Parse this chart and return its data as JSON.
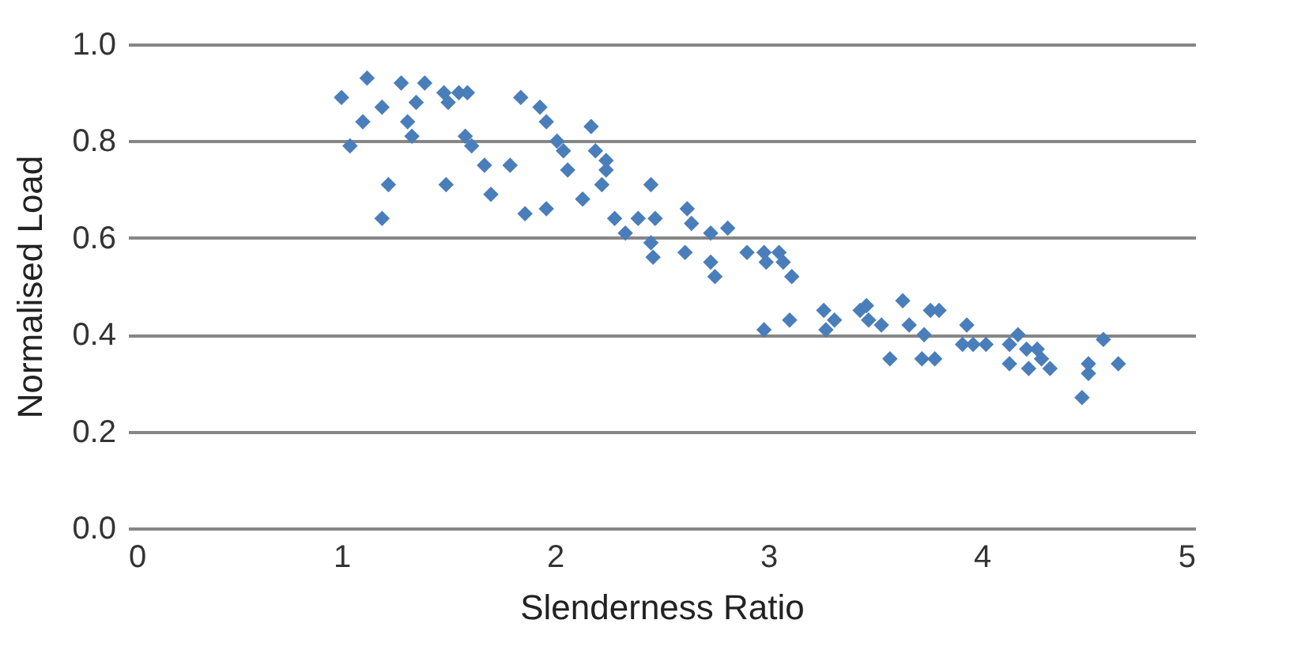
{
  "chart_data": {
    "type": "scatter",
    "xlabel": "Slenderness Ratio",
    "ylabel": "Normalised Load",
    "xlim": [
      0,
      5
    ],
    "xticks": [
      0,
      1,
      2,
      3,
      4,
      5
    ],
    "ylim": [
      0,
      1
    ],
    "yticks": [
      {
        "value": 0,
        "label": "0.0"
      },
      {
        "value": 0.2,
        "label": "0.2"
      },
      {
        "value": 0.4,
        "label": "0.4"
      },
      {
        "value": 0.6,
        "label": "0.6"
      },
      {
        "value": 0.8,
        "label": "0.8"
      },
      {
        "value": 1,
        "label": "1.0"
      }
    ],
    "grid": "y",
    "marker": "diamond",
    "series": [
      {
        "color": "#4a7ebb",
        "x": [
          1.0,
          1.12,
          1.19,
          1.1,
          1.04,
          1.22,
          1.19,
          1.28,
          1.39,
          1.35,
          1.31,
          1.33,
          1.48,
          1.5,
          1.55,
          1.59,
          1.58,
          1.61,
          1.67,
          1.79,
          1.7,
          1.49,
          1.84,
          1.93,
          1.96,
          2.01,
          2.04,
          2.06,
          1.86,
          1.96,
          2.13,
          2.17,
          2.19,
          2.24,
          2.24,
          2.22,
          2.45,
          2.28,
          2.33,
          2.39,
          2.47,
          2.45,
          2.46,
          2.62,
          2.64,
          2.61,
          2.73,
          2.73,
          2.75,
          2.81,
          2.9,
          2.98,
          2.99,
          3.05,
          3.07,
          3.11,
          2.98,
          3.1,
          3.26,
          3.27,
          3.31,
          3.43,
          3.47,
          3.46,
          3.53,
          3.57,
          3.63,
          3.66,
          3.73,
          3.72,
          3.78,
          3.76,
          3.8,
          3.93,
          3.91,
          3.96,
          4.02,
          4.13,
          4.17,
          4.13,
          4.21,
          4.22,
          4.26,
          4.28,
          4.32,
          4.5,
          4.5,
          4.47,
          4.57,
          4.64
        ],
        "values": [
          0.89,
          0.93,
          0.87,
          0.84,
          0.79,
          0.71,
          0.64,
          0.92,
          0.92,
          0.88,
          0.84,
          0.81,
          0.9,
          0.88,
          0.9,
          0.9,
          0.81,
          0.79,
          0.75,
          0.75,
          0.69,
          0.71,
          0.89,
          0.87,
          0.84,
          0.8,
          0.78,
          0.74,
          0.65,
          0.66,
          0.68,
          0.83,
          0.78,
          0.76,
          0.74,
          0.71,
          0.71,
          0.64,
          0.61,
          0.64,
          0.64,
          0.59,
          0.56,
          0.66,
          0.63,
          0.57,
          0.61,
          0.55,
          0.52,
          0.62,
          0.57,
          0.57,
          0.55,
          0.57,
          0.55,
          0.52,
          0.41,
          0.43,
          0.45,
          0.41,
          0.43,
          0.45,
          0.43,
          0.46,
          0.42,
          0.35,
          0.47,
          0.42,
          0.4,
          0.35,
          0.35,
          0.45,
          0.45,
          0.42,
          0.38,
          0.38,
          0.38,
          0.38,
          0.4,
          0.34,
          0.37,
          0.33,
          0.37,
          0.35,
          0.33,
          0.34,
          0.32,
          0.27,
          0.39,
          0.34
        ]
      }
    ]
  }
}
